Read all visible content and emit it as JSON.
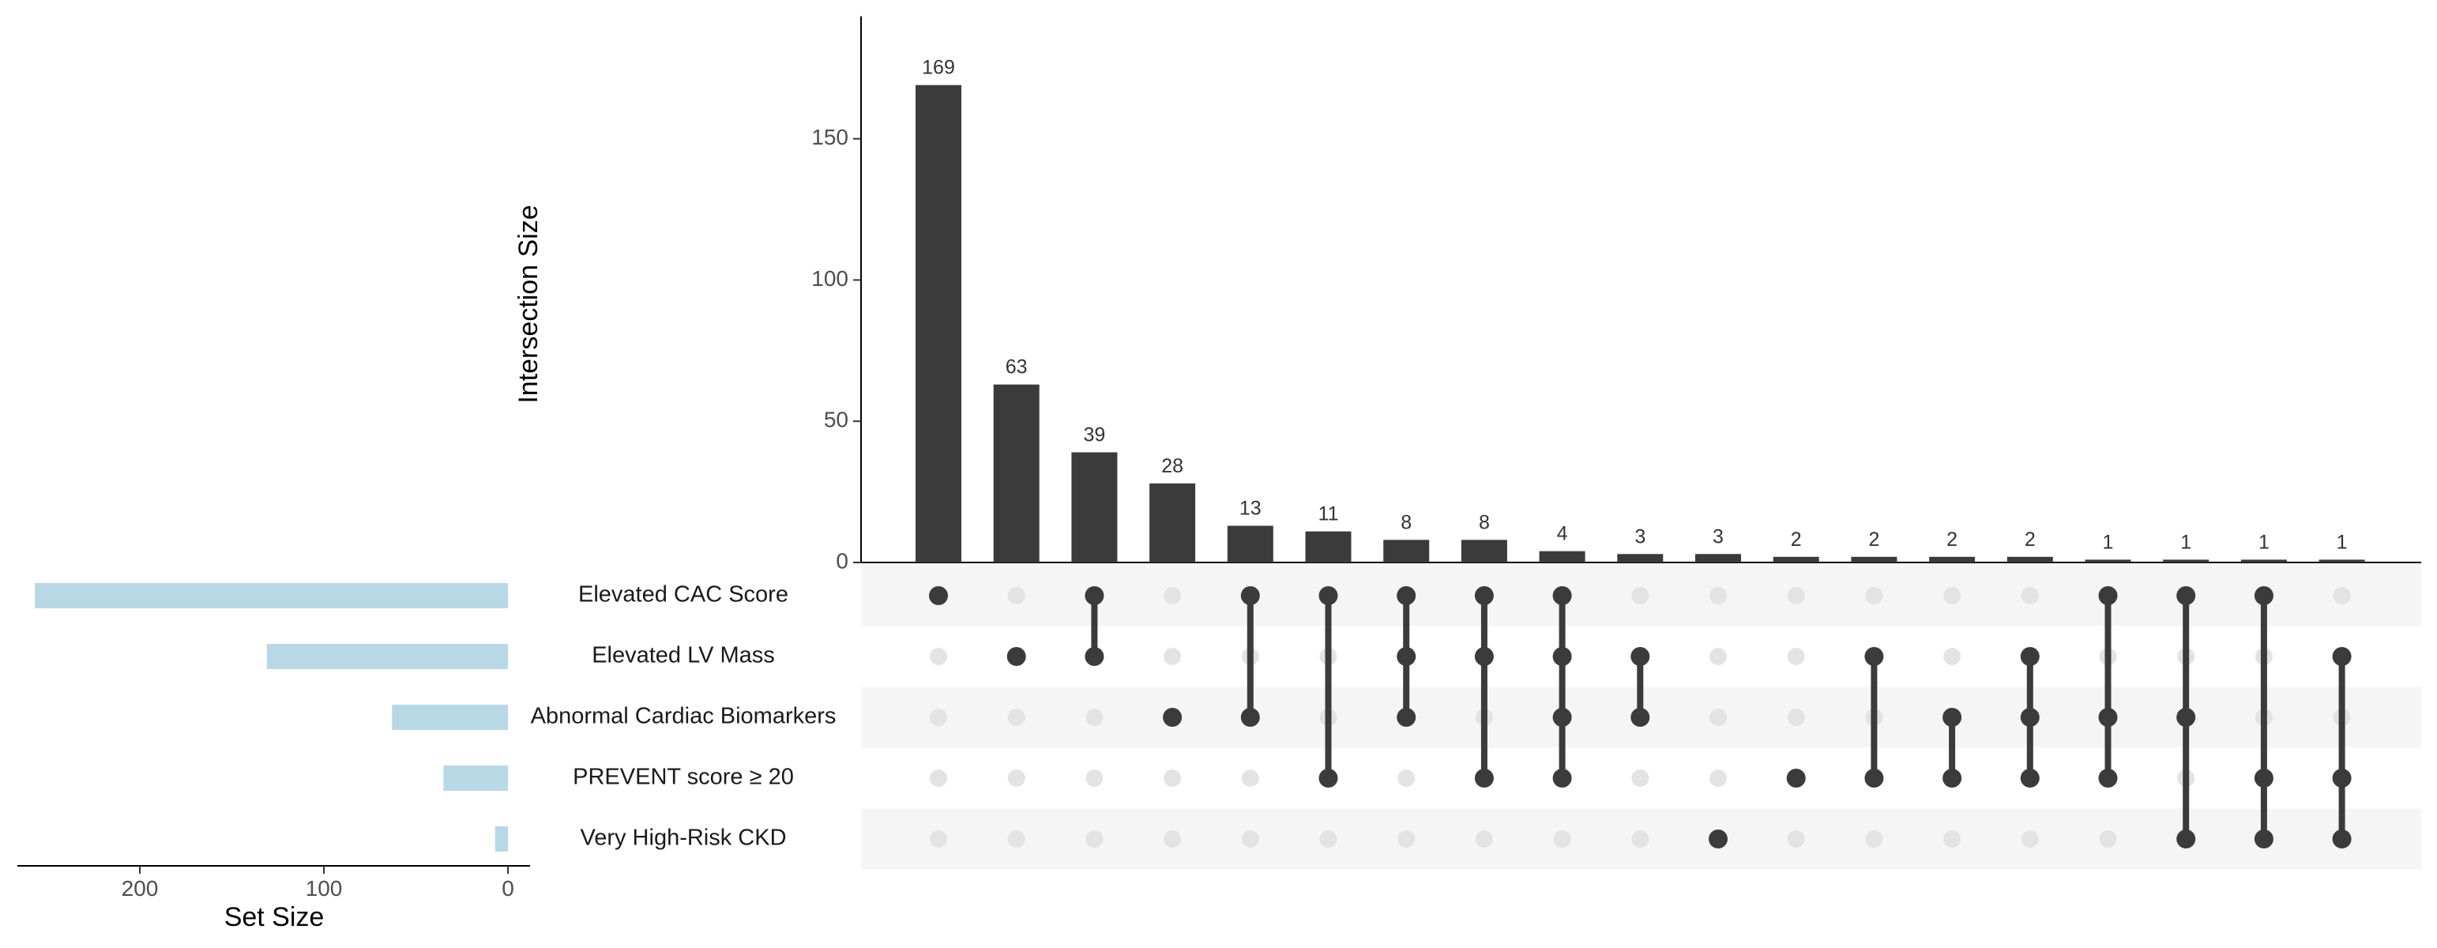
{
  "chart_data": {
    "type": "upset",
    "intersection_axis": {
      "title": "Intersection Size",
      "ticks": [
        0,
        50,
        100,
        150
      ],
      "ylim": [
        0,
        190
      ]
    },
    "set_size_axis": {
      "title": "Set Size",
      "ticks": [
        0,
        100,
        200
      ],
      "xlim": [
        0,
        265
      ]
    },
    "sets": [
      {
        "name": "Elevated CAC Score",
        "size": 257
      },
      {
        "name": "Elevated LV Mass",
        "size": 131
      },
      {
        "name": "Abnormal Cardiac Biomarkers",
        "size": 63
      },
      {
        "name": "PREVENT score ≥ 20",
        "size": 35
      },
      {
        "name": "Very High-Risk CKD",
        "size": 7
      }
    ],
    "intersections": [
      {
        "size": 169,
        "sets": [
          0
        ]
      },
      {
        "size": 63,
        "sets": [
          1
        ]
      },
      {
        "size": 39,
        "sets": [
          0,
          1
        ]
      },
      {
        "size": 28,
        "sets": [
          2
        ]
      },
      {
        "size": 13,
        "sets": [
          0,
          2
        ]
      },
      {
        "size": 11,
        "sets": [
          0,
          3
        ]
      },
      {
        "size": 8,
        "sets": [
          0,
          1,
          2
        ]
      },
      {
        "size": 8,
        "sets": [
          0,
          1,
          3
        ]
      },
      {
        "size": 4,
        "sets": [
          0,
          1,
          2,
          3
        ]
      },
      {
        "size": 3,
        "sets": [
          1,
          2
        ]
      },
      {
        "size": 3,
        "sets": [
          4
        ]
      },
      {
        "size": 2,
        "sets": [
          3
        ]
      },
      {
        "size": 2,
        "sets": [
          1,
          3
        ]
      },
      {
        "size": 2,
        "sets": [
          2,
          3
        ]
      },
      {
        "size": 2,
        "sets": [
          1,
          2,
          3
        ]
      },
      {
        "size": 1,
        "sets": [
          0,
          2,
          3
        ]
      },
      {
        "size": 1,
        "sets": [
          0,
          2,
          4
        ]
      },
      {
        "size": 1,
        "sets": [
          0,
          3,
          4
        ]
      },
      {
        "size": 1,
        "sets": [
          1,
          3,
          4
        ]
      }
    ],
    "colors": {
      "intersection_bar": "#3b3b3b",
      "set_bar": "#b8d8e6",
      "dot_active": "#3b3b3b",
      "dot_inactive": "#e3e3e3",
      "stripe": "#f5f5f5"
    }
  }
}
